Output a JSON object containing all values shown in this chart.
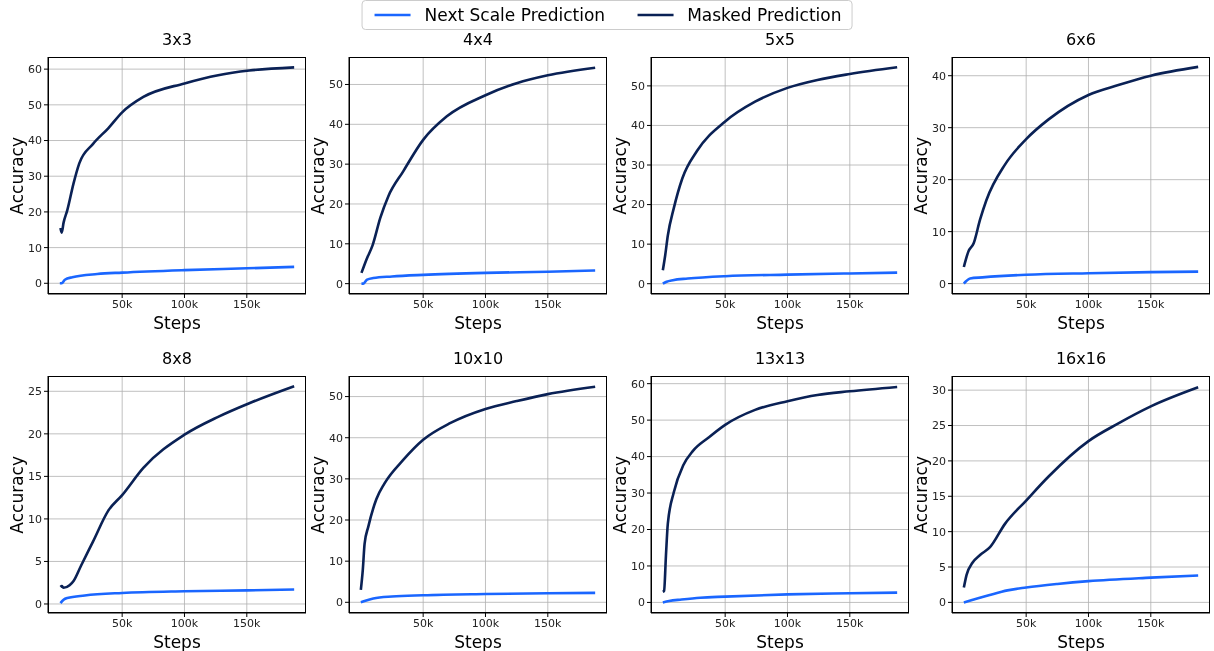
{
  "chart_data": [
    {
      "type": "line",
      "title": "3x3",
      "xlabel": "Steps",
      "ylabel": "Accuracy",
      "grid": true,
      "legend": "top",
      "xlim": [
        -9500,
        197500
      ],
      "xticks": [
        {
          "value": 50000,
          "label": "50k"
        },
        {
          "value": 100000,
          "label": "100k"
        },
        {
          "value": 150000,
          "label": "150k"
        }
      ],
      "ylim": [
        -3,
        63.4
      ],
      "yticks": [
        0,
        10,
        20,
        30,
        40,
        50,
        60
      ],
      "series": [
        {
          "name": "Next Scale Prediction",
          "color": "#1a66ff",
          "x": [
            0,
            1500,
            4000,
            10000,
            30000,
            50000,
            100000,
            150000,
            188000
          ],
          "values": [
            0,
            0,
            1.0,
            1.7,
            2.6,
            3.0,
            3.7,
            4.2,
            4.6
          ]
        },
        {
          "name": "Masked Prediction",
          "color": "#0a2155",
          "x": [
            500,
            1500,
            3000,
            6000,
            11000,
            15600,
            26500,
            39000,
            50000,
            67000,
            100000,
            127000,
            152000,
            188000
          ],
          "values": [
            15.5,
            14.2,
            17,
            20.5,
            28,
            33.6,
            39,
            43.5,
            47.9,
            52.2,
            56,
            58.3,
            59.6,
            60.5
          ]
        }
      ]
    },
    {
      "type": "line",
      "title": "4x4",
      "xlabel": "Steps",
      "ylabel": "Accuracy",
      "grid": true,
      "xlim": [
        -9500,
        197500
      ],
      "xticks": [
        {
          "value": 50000,
          "label": "50k"
        },
        {
          "value": 100000,
          "label": "100k"
        },
        {
          "value": 150000,
          "label": "150k"
        }
      ],
      "ylim": [
        -2.6,
        56.9
      ],
      "yticks": [
        0,
        10,
        20,
        30,
        40,
        50
      ],
      "series": [
        {
          "color": "#1a66ff",
          "x": [
            500,
            2000,
            5000,
            10000,
            25000,
            50000,
            100000,
            150000,
            188000
          ],
          "values": [
            0,
            0,
            1.0,
            1.4,
            1.8,
            2.2,
            2.7,
            3.0,
            3.3
          ]
        },
        {
          "color": "#0a2155",
          "x": [
            500,
            4700,
            9400,
            15600,
            22000,
            34000,
            50000,
            69000,
            100000,
            125000,
            150000,
            188000
          ],
          "values": [
            2.7,
            6.2,
            9.6,
            16.5,
            21.9,
            28.2,
            36.1,
            42,
            47.3,
            50.3,
            52.3,
            54.2
          ]
        }
      ]
    },
    {
      "type": "line",
      "title": "5x5",
      "xlabel": "Steps",
      "ylabel": "Accuracy",
      "grid": true,
      "xlim": [
        -9500,
        197500
      ],
      "xticks": [
        {
          "value": 50000,
          "label": "50k"
        },
        {
          "value": 100000,
          "label": "100k"
        },
        {
          "value": 150000,
          "label": "150k"
        }
      ],
      "ylim": [
        -2.6,
        57.3
      ],
      "yticks": [
        0,
        10,
        20,
        30,
        40,
        50
      ],
      "series": [
        {
          "color": "#1a66ff",
          "x": [
            0,
            3000,
            8000,
            20000,
            50000,
            100000,
            150000,
            188000
          ],
          "values": [
            0,
            0.5,
            0.9,
            1.3,
            1.9,
            2.3,
            2.6,
            2.8
          ]
        },
        {
          "color": "#0a2155",
          "x": [
            0,
            1900,
            4000,
            8800,
            15600,
            27500,
            50000,
            74000,
            100000,
            124000,
            150000,
            188000
          ],
          "values": [
            3.4,
            7.2,
            12.2,
            19.1,
            26.6,
            33.6,
            41,
            46,
            49.5,
            51.5,
            53,
            54.7
          ]
        }
      ]
    },
    {
      "type": "line",
      "title": "6x6",
      "xlabel": "Steps",
      "ylabel": "Accuracy",
      "grid": true,
      "xlim": [
        -9500,
        197500
      ],
      "xticks": [
        {
          "value": 50000,
          "label": "50k"
        },
        {
          "value": 100000,
          "label": "100k"
        },
        {
          "value": 150000,
          "label": "150k"
        }
      ],
      "ylim": [
        -2,
        43.6
      ],
      "yticks": [
        0,
        10,
        20,
        30,
        40
      ],
      "series": [
        {
          "color": "#1a66ff",
          "x": [
            0,
            2000,
            5000,
            15000,
            50000,
            100000,
            150000,
            188000
          ],
          "values": [
            0,
            0.5,
            1.0,
            1.2,
            1.7,
            2.0,
            2.2,
            2.3
          ]
        },
        {
          "color": "#0a2155",
          "x": [
            0,
            3700,
            7800,
            13000,
            18000,
            33000,
            50000,
            68000,
            100000,
            124000,
            150000,
            188000
          ],
          "values": [
            3.2,
            6.2,
            7.7,
            12.3,
            16,
            22.9,
            27.8,
            31.6,
            36.3,
            38.2,
            40,
            41.7
          ]
        }
      ]
    },
    {
      "type": "line",
      "title": "8x8",
      "xlabel": "Steps",
      "ylabel": "Accuracy",
      "grid": true,
      "xlim": [
        -9500,
        197500
      ],
      "xticks": [
        {
          "value": 50000,
          "label": "50k"
        },
        {
          "value": 100000,
          "label": "100k"
        },
        {
          "value": 150000,
          "label": "150k"
        }
      ],
      "ylim": [
        -1.06,
        26.8
      ],
      "yticks": [
        0,
        5,
        10,
        15,
        20,
        25
      ],
      "series": [
        {
          "color": "#1a66ff",
          "x": [
            500,
            3000,
            6000,
            20000,
            50000,
            100000,
            150000,
            188000
          ],
          "values": [
            0.1,
            0.5,
            0.7,
            1.0,
            1.3,
            1.5,
            1.6,
            1.7
          ]
        },
        {
          "color": "#0a2155",
          "x": [
            500,
            1600,
            3000,
            7800,
            11000,
            17000,
            26500,
            39000,
            50000,
            67000,
            100000,
            127000,
            152000,
            188000
          ],
          "values": [
            2.0,
            2.1,
            1.9,
            2.2,
            2.7,
            4.5,
            7.3,
            11,
            12.8,
            16,
            19.9,
            22,
            23.6,
            25.6
          ]
        }
      ]
    },
    {
      "type": "line",
      "title": "10x10",
      "xlabel": "Steps",
      "ylabel": "Accuracy",
      "grid": true,
      "xlim": [
        -9500,
        197500
      ],
      "xticks": [
        {
          "value": 50000,
          "label": "50k"
        },
        {
          "value": 100000,
          "label": "100k"
        },
        {
          "value": 150000,
          "label": "150k"
        }
      ],
      "ylim": [
        -2.6,
        55
      ],
      "yticks": [
        0,
        10,
        20,
        30,
        40,
        50
      ],
      "series": [
        {
          "color": "#1a66ff",
          "x": [
            0,
            3000,
            10000,
            25000,
            50000,
            100000,
            150000,
            188000
          ],
          "values": [
            0,
            0.3,
            0.9,
            1.4,
            1.7,
            2.0,
            2.2,
            2.3
          ]
        },
        {
          "color": "#0a2155",
          "x": [
            0,
            1600,
            3000,
            6000,
            12500,
            19000,
            34000,
            50000,
            72000,
            100000,
            125000,
            150000,
            188000
          ],
          "values": [
            3.0,
            8,
            14.2,
            18.4,
            25.1,
            28.9,
            34.6,
            39.5,
            43.6,
            47,
            48.9,
            50.6,
            52.4
          ]
        }
      ]
    },
    {
      "type": "line",
      "title": "13x13",
      "xlabel": "Steps",
      "ylabel": "Accuracy",
      "grid": true,
      "xlim": [
        -9500,
        197500
      ],
      "xticks": [
        {
          "value": 50000,
          "label": "50k"
        },
        {
          "value": 100000,
          "label": "100k"
        },
        {
          "value": 150000,
          "label": "150k"
        }
      ],
      "ylim": [
        -2.9,
        62.1
      ],
      "yticks": [
        0,
        10,
        20,
        30,
        40,
        50,
        60
      ],
      "series": [
        {
          "color": "#1a66ff",
          "x": [
            0,
            5000,
            15000,
            30000,
            50000,
            100000,
            150000,
            188000
          ],
          "values": [
            0,
            0.4,
            0.8,
            1.3,
            1.6,
            2.2,
            2.5,
            2.7
          ]
        },
        {
          "color": "#0a2155",
          "x": [
            0,
            1000,
            2500,
            4000,
            8800,
            16500,
            24000,
            37000,
            50000,
            74000,
            100000,
            124000,
            150000,
            188000
          ],
          "values": [
            2.9,
            3.2,
            12.9,
            21.6,
            30.2,
            37.7,
            41.5,
            45.3,
            48.7,
            52.8,
            55.2,
            56.9,
            57.9,
            59.1
          ]
        }
      ]
    },
    {
      "type": "line",
      "title": "16x16",
      "xlabel": "Steps",
      "ylabel": "Accuracy",
      "grid": true,
      "xlim": [
        -9500,
        197500
      ],
      "xticks": [
        {
          "value": 50000,
          "label": "50k"
        },
        {
          "value": 100000,
          "label": "100k"
        },
        {
          "value": 150000,
          "label": "150k"
        }
      ],
      "ylim": [
        -1.5,
        32
      ],
      "yticks": [
        0,
        5,
        10,
        15,
        20,
        25,
        30
      ],
      "series": [
        {
          "color": "#1a66ff",
          "x": [
            0,
            8000,
            20000,
            35000,
            50000,
            75000,
            100000,
            150000,
            188000
          ],
          "values": [
            0,
            0.4,
            1.0,
            1.7,
            2.1,
            2.6,
            3.0,
            3.5,
            3.8
          ]
        },
        {
          "color": "#0a2155",
          "x": [
            0,
            2200,
            6900,
            13000,
            21000,
            33000,
            50000,
            68000,
            100000,
            124000,
            150000,
            188000
          ],
          "values": [
            2.1,
            3.9,
            5.6,
            6.7,
            7.8,
            11.1,
            14.4,
            17.8,
            22.8,
            25.3,
            27.7,
            30.4
          ]
        }
      ]
    }
  ]
}
